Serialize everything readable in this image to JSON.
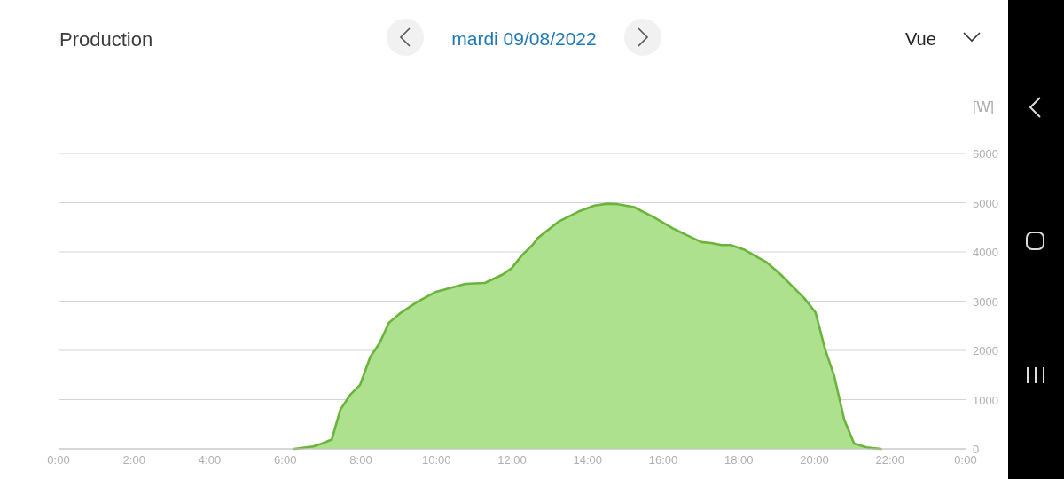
{
  "chart_data": {
    "type": "area",
    "title": "Production",
    "subtitle": "mardi 09/08/2022",
    "ylabel": "[W]",
    "annotations": [
      "Vue"
    ],
    "x": [
      6.24,
      6.74,
      6.97,
      7.23,
      7.46,
      7.72,
      7.98,
      8.25,
      8.49,
      8.74,
      9.05,
      9.48,
      9.99,
      10.38,
      10.77,
      11.28,
      11.75,
      11.99,
      12.26,
      12.54,
      12.69,
      13.24,
      13.79,
      14.18,
      14.53,
      14.8,
      15.23,
      15.74,
      16.25,
      16.6,
      17.01,
      17.27,
      17.54,
      17.78,
      18.13,
      18.48,
      18.75,
      19.11,
      19.42,
      19.73,
      20.03,
      20.28,
      20.52,
      20.79,
      21.05,
      21.38,
      21.76
    ],
    "values": [
      0,
      50,
      110,
      190,
      800,
      1100,
      1300,
      1870,
      2140,
      2560,
      2760,
      2980,
      3190,
      3270,
      3350,
      3370,
      3540,
      3670,
      3930,
      4140,
      4290,
      4620,
      4830,
      4940,
      4980,
      4970,
      4910,
      4710,
      4480,
      4350,
      4200,
      4180,
      4140,
      4140,
      4050,
      3900,
      3780,
      3540,
      3300,
      3060,
      2770,
      2030,
      1490,
      590,
      110,
      30,
      0
    ],
    "color": "#6ab43c",
    "xlim": [
      0,
      24
    ],
    "xticks": [
      {
        "value": 0,
        "label": "0:00"
      },
      {
        "value": 2,
        "label": "2:00"
      },
      {
        "value": 4,
        "label": "4:00"
      },
      {
        "value": 6,
        "label": "6:00"
      },
      {
        "value": 8,
        "label": "8:00"
      },
      {
        "value": 10,
        "label": "10:00"
      },
      {
        "value": 12,
        "label": "12:00"
      },
      {
        "value": 14,
        "label": "14:00"
      },
      {
        "value": 16,
        "label": "16:00"
      },
      {
        "value": 18,
        "label": "18:00"
      },
      {
        "value": 20,
        "label": "20:00"
      },
      {
        "value": 22,
        "label": "22:00"
      },
      {
        "value": 24,
        "label": "0:00"
      }
    ],
    "ylim": [
      0,
      6000
    ],
    "yticks": [
      0,
      1000,
      2000,
      3000,
      4000,
      5000,
      6000
    ],
    "grid": "y"
  }
}
